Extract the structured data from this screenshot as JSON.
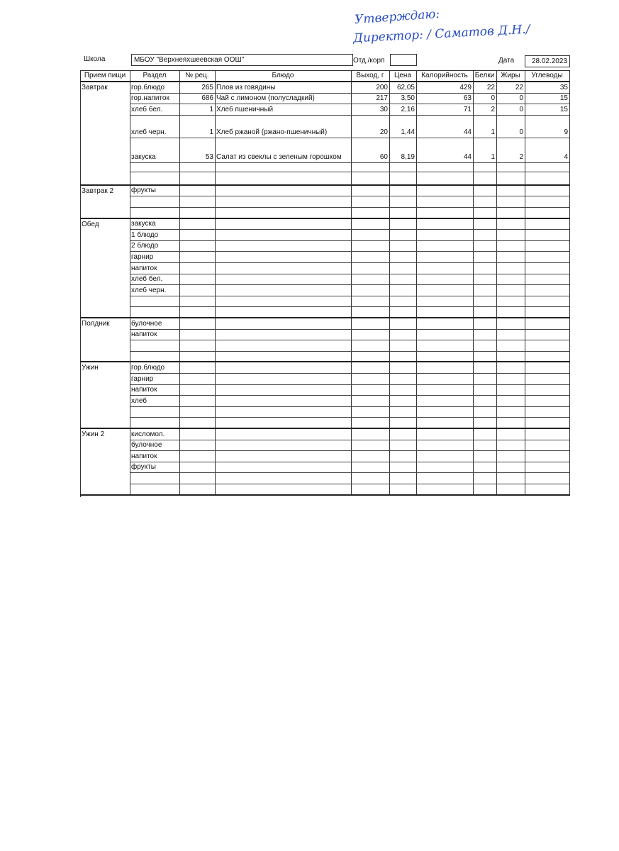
{
  "approval": {
    "line1": "Утверждаю:",
    "line2": "Директор: / Саматов Д.Н./"
  },
  "header": {
    "school_label": "Школа",
    "school": "МБОУ \"Верхнеяхшеевская ООШ\"",
    "dept_label": "Отд./корп",
    "date_label": "Дата",
    "date": "28.02.2023"
  },
  "table": {
    "columns": [
      "Прием пищи",
      "Раздел",
      "№ рец.",
      "Блюдо",
      "Выход, г",
      "Цена",
      "Калорийность",
      "Белки",
      "Жиры",
      "Углеводы"
    ],
    "sections": [
      {
        "meal": "Завтрак",
        "rows": [
          [
            "гор.блюдо",
            265,
            "Плов из говядины",
            200,
            "62,05",
            429,
            22,
            22,
            35
          ],
          [
            "гор.напиток",
            686,
            "Чай с лимоном (полусладкий)",
            217,
            "3,50",
            63,
            0,
            0,
            15
          ],
          [
            "хлеб бел.",
            1,
            "Хлеб пшеничный",
            30,
            "2,16",
            71,
            2,
            0,
            15
          ],
          [
            "хлеб черн.",
            1,
            "Хлеб ржаной (ржано-пшеничный)",
            20,
            "1,44",
            44,
            1,
            0,
            9
          ],
          [
            "закуска",
            53,
            "Салат из свеклы с зеленым горошком",
            60,
            "8,19",
            44,
            1,
            2,
            4
          ],
          [
            null,
            null,
            null,
            null,
            null,
            null,
            null,
            null,
            null
          ],
          [
            null,
            null,
            null,
            null,
            null,
            null,
            null,
            null,
            null
          ]
        ]
      },
      {
        "meal": "Завтрак 2",
        "rows": [
          [
            "фрукты",
            null,
            null,
            null,
            null,
            null,
            null,
            null,
            null
          ],
          [
            null,
            null,
            null,
            null,
            null,
            null,
            null,
            null,
            null
          ],
          [
            null,
            null,
            null,
            null,
            null,
            null,
            null,
            null,
            null
          ]
        ]
      },
      {
        "meal": "Обед",
        "rows": [
          [
            "закуска",
            null,
            null,
            null,
            null,
            null,
            null,
            null,
            null
          ],
          [
            "1 блюдо",
            null,
            null,
            null,
            null,
            null,
            null,
            null,
            null
          ],
          [
            "2 блюдо",
            null,
            null,
            null,
            null,
            null,
            null,
            null,
            null
          ],
          [
            "гарнир",
            null,
            null,
            null,
            null,
            null,
            null,
            null,
            null
          ],
          [
            "напиток",
            null,
            null,
            null,
            null,
            null,
            null,
            null,
            null
          ],
          [
            "хлеб бел.",
            null,
            null,
            null,
            null,
            null,
            null,
            null,
            null
          ],
          [
            "хлеб черн.",
            null,
            null,
            null,
            null,
            null,
            null,
            null,
            null
          ],
          [
            null,
            null,
            null,
            null,
            null,
            null,
            null,
            null,
            null
          ],
          [
            null,
            null,
            null,
            null,
            null,
            null,
            null,
            null,
            null
          ]
        ]
      },
      {
        "meal": "Полдник",
        "rows": [
          [
            "булочное",
            null,
            null,
            null,
            null,
            null,
            null,
            null,
            null
          ],
          [
            "напиток",
            null,
            null,
            null,
            null,
            null,
            null,
            null,
            null
          ],
          [
            null,
            null,
            null,
            null,
            null,
            null,
            null,
            null,
            null
          ],
          [
            null,
            null,
            null,
            null,
            null,
            null,
            null,
            null,
            null
          ]
        ]
      },
      {
        "meal": "Ужин",
        "rows": [
          [
            "гор.блюдо",
            null,
            null,
            null,
            null,
            null,
            null,
            null,
            null
          ],
          [
            "гарнир",
            null,
            null,
            null,
            null,
            null,
            null,
            null,
            null
          ],
          [
            "напиток",
            null,
            null,
            null,
            null,
            null,
            null,
            null,
            null
          ],
          [
            "хлеб",
            null,
            null,
            null,
            null,
            null,
            null,
            null,
            null
          ],
          [
            null,
            null,
            null,
            null,
            null,
            null,
            null,
            null,
            null
          ],
          [
            null,
            null,
            null,
            null,
            null,
            null,
            null,
            null,
            null
          ]
        ]
      },
      {
        "meal": "Ужин 2",
        "rows": [
          [
            "кисломол.",
            null,
            null,
            null,
            null,
            null,
            null,
            null,
            null
          ],
          [
            "булочное",
            null,
            null,
            null,
            null,
            null,
            null,
            null,
            null
          ],
          [
            "напиток",
            null,
            null,
            null,
            null,
            null,
            null,
            null,
            null
          ],
          [
            "фрукты",
            null,
            null,
            null,
            null,
            null,
            null,
            null,
            null
          ],
          [
            null,
            null,
            null,
            null,
            null,
            null,
            null,
            null,
            null
          ],
          [
            null,
            null,
            null,
            null,
            null,
            null,
            null,
            null,
            null
          ]
        ]
      }
    ]
  }
}
